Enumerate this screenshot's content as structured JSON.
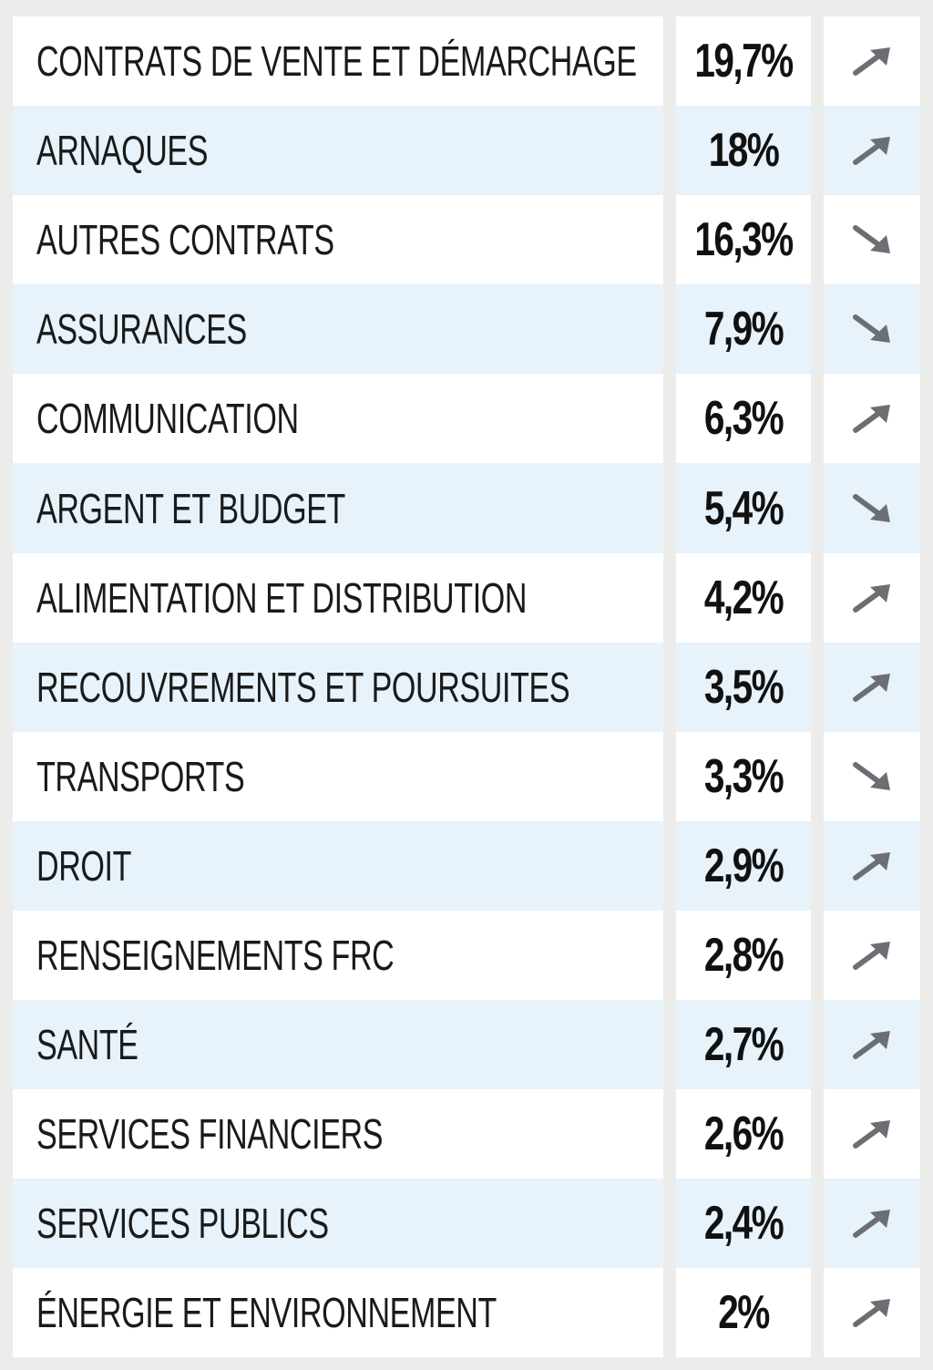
{
  "chart_data": {
    "type": "table",
    "columns": [
      "",
      "",
      ""
    ],
    "rows": [
      {
        "label": "CONTRATS DE VENTE ET DÉMARCHAGE",
        "value_text": "19,7%",
        "value": 19.7,
        "trend": "up"
      },
      {
        "label": "ARNAQUES",
        "value_text": "18%",
        "value": 18,
        "trend": "up"
      },
      {
        "label": "AUTRES CONTRATS",
        "value_text": "16,3%",
        "value": 16.3,
        "trend": "down"
      },
      {
        "label": "ASSURANCES",
        "value_text": "7,9%",
        "value": 7.9,
        "trend": "down"
      },
      {
        "label": "COMMUNICATION",
        "value_text": "6,3%",
        "value": 6.3,
        "trend": "up"
      },
      {
        "label": "ARGENT ET BUDGET",
        "value_text": "5,4%",
        "value": 5.4,
        "trend": "down"
      },
      {
        "label": "ALIMENTATION ET DISTRIBUTION",
        "value_text": "4,2%",
        "value": 4.2,
        "trend": "up"
      },
      {
        "label": "RECOUVREMENTS ET POURSUITES",
        "value_text": "3,5%",
        "value": 3.5,
        "trend": "up"
      },
      {
        "label": "TRANSPORTS",
        "value_text": "3,3%",
        "value": 3.3,
        "trend": "down"
      },
      {
        "label": "DROIT",
        "value_text": "2,9%",
        "value": 2.9,
        "trend": "up"
      },
      {
        "label": "RENSEIGNEMENTS FRC",
        "value_text": "2,8%",
        "value": 2.8,
        "trend": "up"
      },
      {
        "label": "SANTÉ",
        "value_text": "2,7%",
        "value": 2.7,
        "trend": "up"
      },
      {
        "label": "SERVICES FINANCIERS",
        "value_text": "2,6%",
        "value": 2.6,
        "trend": "up"
      },
      {
        "label": "SERVICES PUBLICS",
        "value_text": "2,4%",
        "value": 2.4,
        "trend": "up"
      },
      {
        "label": "ÉNERGIE ET ENVIRONNEMENT",
        "value_text": "2%",
        "value": 2,
        "trend": "up"
      }
    ]
  },
  "colors": {
    "page_background": "#ecedea",
    "row_white": "#ffffff",
    "row_blue": "#e7f2fb",
    "arrow": "#6d6e73",
    "text": "#1a1a1a"
  },
  "icons": {
    "up": "arrow-up-right-icon",
    "down": "arrow-down-right-icon"
  }
}
